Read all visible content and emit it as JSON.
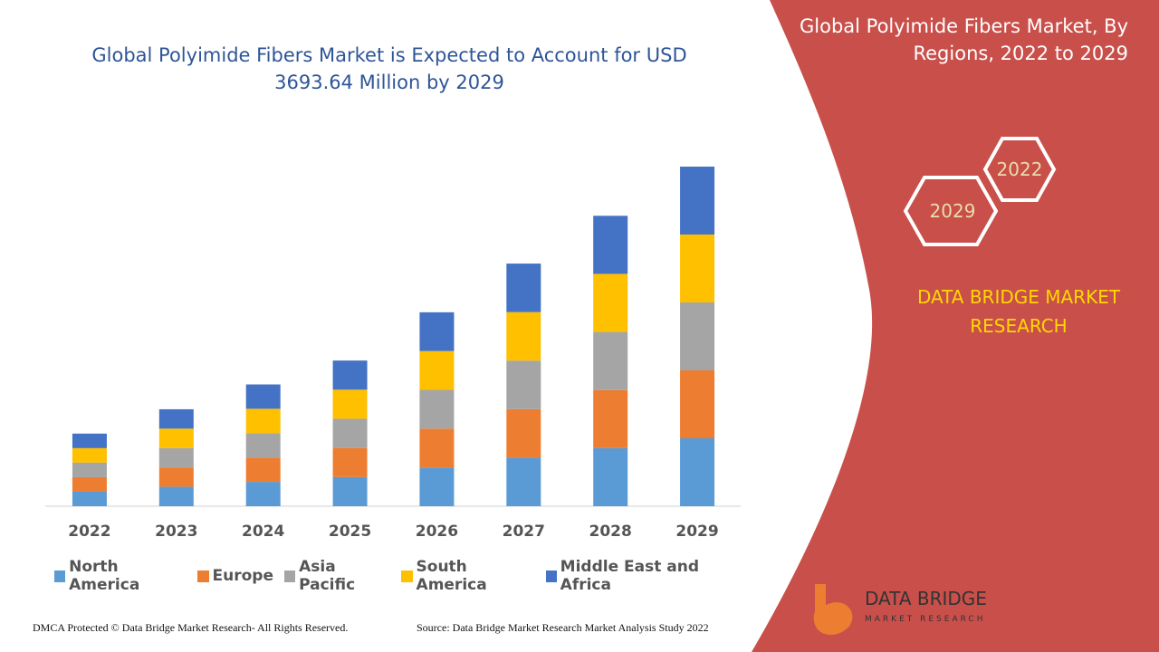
{
  "chart_data": {
    "type": "stacked_bar",
    "title": "Global Polyimide Fibers Market is Expected to Account for USD 3693.64 Million by 2029",
    "categories": [
      "2022",
      "2023",
      "2024",
      "2025",
      "2026",
      "2027",
      "2028",
      "2029"
    ],
    "series": [
      {
        "name": "North America",
        "color": "#5b9bd5",
        "values": [
          158,
          211,
          265,
          317,
          422,
          528,
          632,
          739
        ]
      },
      {
        "name": "Europe",
        "color": "#ed7d31",
        "values": [
          158,
          211,
          265,
          317,
          422,
          528,
          632,
          739
        ]
      },
      {
        "name": "Asia Pacific",
        "color": "#a5a5a5",
        "values": [
          158,
          211,
          265,
          317,
          422,
          528,
          632,
          739
        ]
      },
      {
        "name": "South America",
        "color": "#ffc000",
        "values": [
          158,
          211,
          265,
          317,
          422,
          528,
          632,
          739
        ]
      },
      {
        "name": "Middle East and Africa",
        "color": "#4472c4",
        "values": [
          158,
          211,
          265,
          317,
          422,
          528,
          632,
          739
        ]
      }
    ],
    "legend": "bottom"
  },
  "panel": {
    "title": "Global Polyimide Fibers Market, By Regions, 2022 to 2029",
    "hex_top": "2022",
    "hex_bottom": "2029",
    "brand": "DATA BRIDGE MARKET RESEARCH",
    "logo_name": "DATA BRIDGE",
    "logo_sub": "MARKET RESEARCH"
  },
  "footer": {
    "left": "DMCA Protected © Data Bridge Market Research- All Rights Reserved.",
    "right": "Source: Data Bridge Market Research Market Analysis Study 2022"
  }
}
